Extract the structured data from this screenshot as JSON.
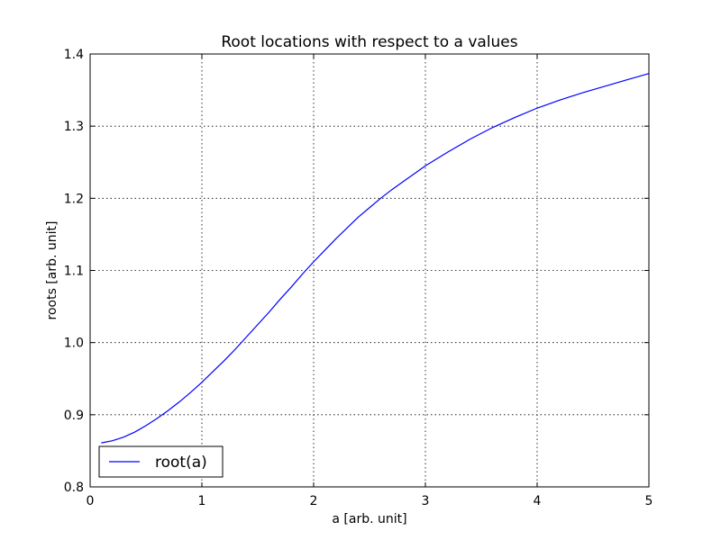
{
  "chart_data": {
    "type": "line",
    "title": "Root locations with respect to a values",
    "xlabel": "a [arb. unit]",
    "ylabel": "roots [arb. unit]",
    "xlim": [
      0,
      5
    ],
    "ylim": [
      0.8,
      1.4
    ],
    "xticks": [
      0,
      1,
      2,
      3,
      4,
      5
    ],
    "xtick_labels": [
      "0",
      "1",
      "2",
      "3",
      "4",
      "5"
    ],
    "yticks": [
      0.8,
      0.9,
      1.0,
      1.1,
      1.2,
      1.3,
      1.4
    ],
    "ytick_labels": [
      "0.8",
      "0.9",
      "1.0",
      "1.1",
      "1.2",
      "1.3",
      "1.4"
    ],
    "grid": true,
    "legend": "lower-left",
    "series": [
      {
        "name": "root(a)",
        "color": "#0000ff",
        "x": [
          0.1,
          0.2,
          0.3,
          0.4,
          0.5,
          0.6,
          0.7,
          0.8,
          0.9,
          1.0,
          1.1,
          1.2,
          1.3,
          1.4,
          1.5,
          1.6,
          1.7,
          1.8,
          1.9,
          2.0,
          2.1,
          2.2,
          2.3,
          2.4,
          2.5,
          2.6,
          2.7,
          2.8,
          2.9,
          3.0,
          3.2,
          3.4,
          3.6,
          3.8,
          4.0,
          4.2,
          4.4,
          4.6,
          4.8,
          5.0
        ],
        "y": [
          0.861,
          0.864,
          0.869,
          0.876,
          0.885,
          0.895,
          0.906,
          0.918,
          0.931,
          0.945,
          0.96,
          0.975,
          0.991,
          1.008,
          1.025,
          1.042,
          1.06,
          1.077,
          1.095,
          1.112,
          1.128,
          1.144,
          1.159,
          1.174,
          1.187,
          1.2,
          1.212,
          1.223,
          1.234,
          1.245,
          1.264,
          1.282,
          1.298,
          1.312,
          1.325,
          1.336,
          1.346,
          1.355,
          1.364,
          1.373
        ]
      }
    ]
  }
}
